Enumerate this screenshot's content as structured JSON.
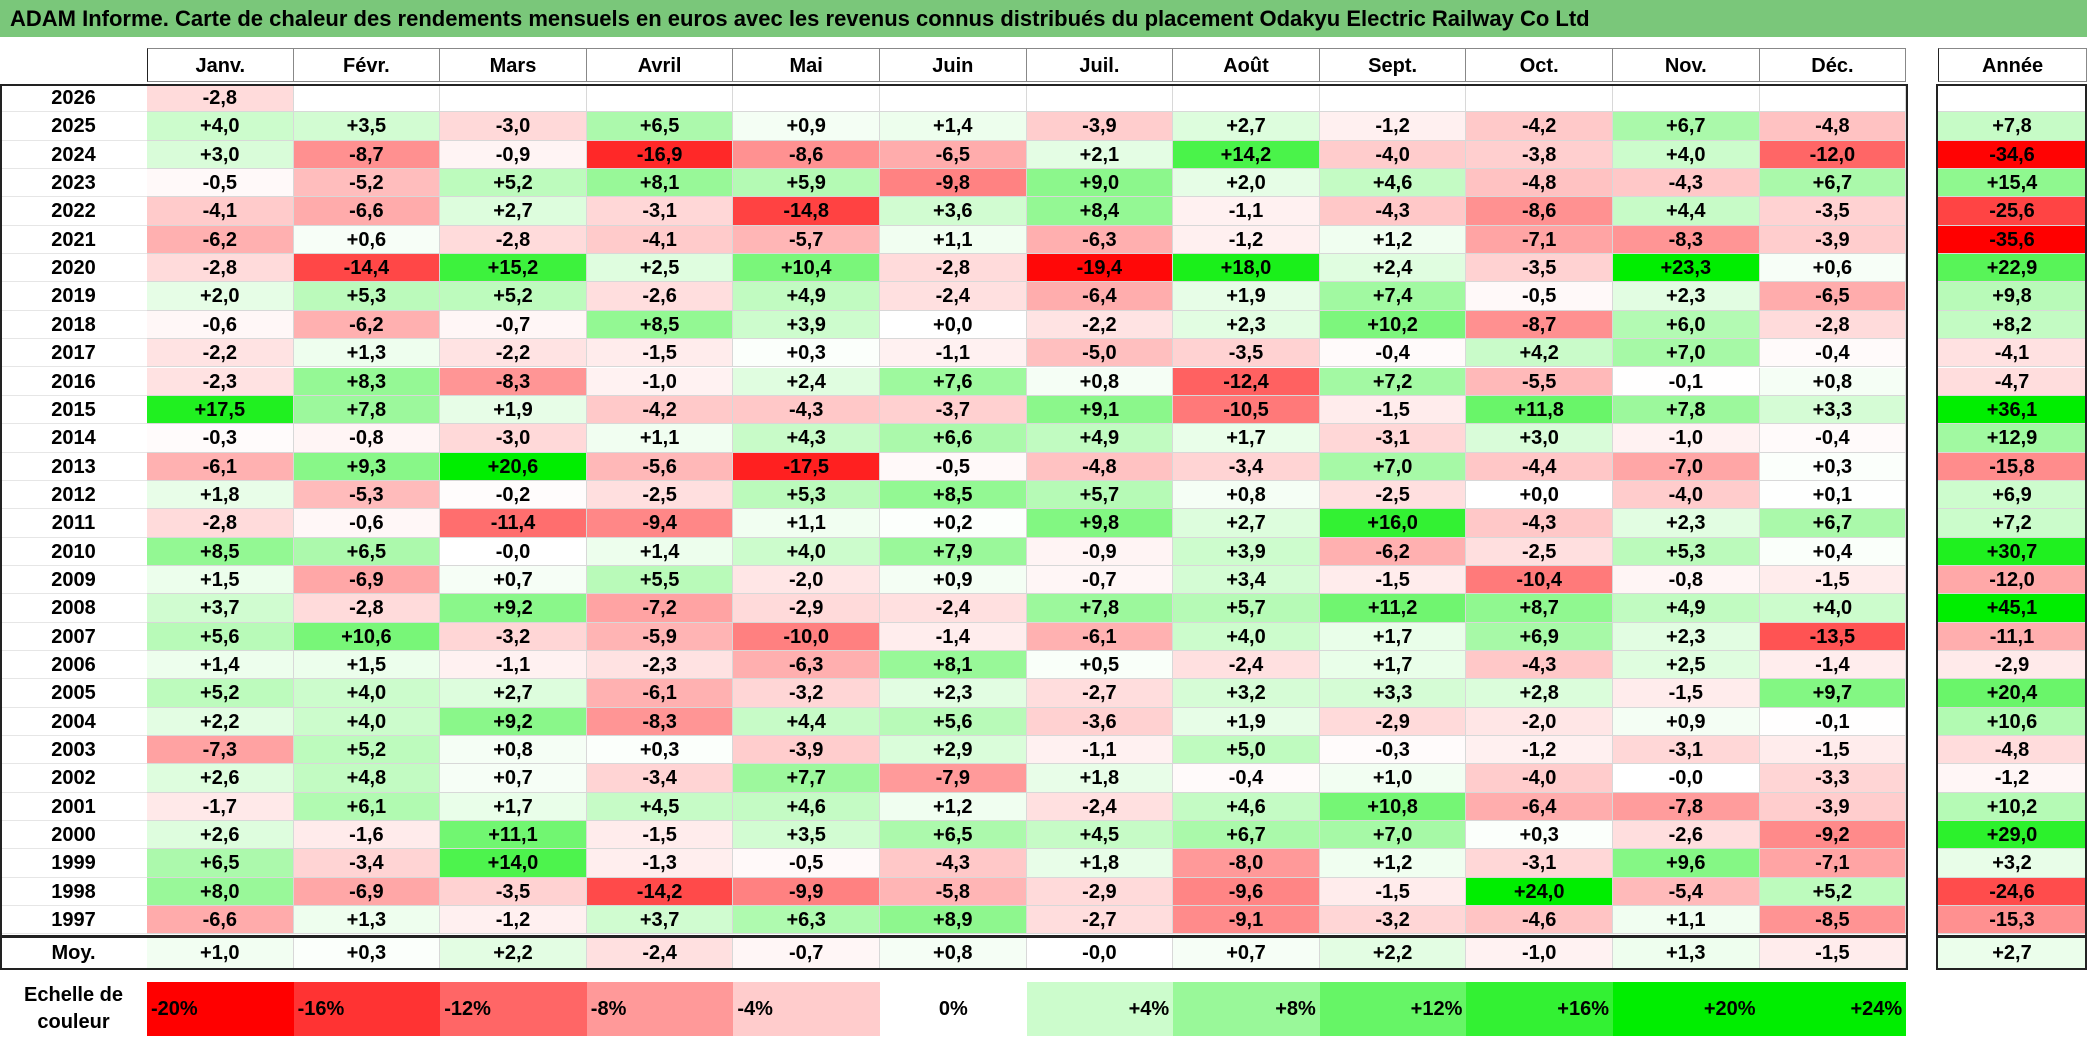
{
  "title": "ADAM Informe. Carte de chaleur des rendements mensuels en euros avec les revenus connus distribués du placement Odakyu Electric Railway Co Ltd",
  "chart_data": {
    "type": "heatmap",
    "months": [
      "Janv.",
      "Févr.",
      "Mars",
      "Avril",
      "Mai",
      "Juin",
      "Juil.",
      "Août",
      "Sept.",
      "Oct.",
      "Nov.",
      "Déc."
    ],
    "year_header": "Année",
    "rows": [
      {
        "year": "2026",
        "values": [
          "-2,8",
          "",
          "",
          "",
          "",
          "",
          "",
          "",
          "",
          "",
          "",
          ""
        ],
        "annual": ""
      },
      {
        "year": "2025",
        "values": [
          "+4,0",
          "+3,5",
          "-3,0",
          "+6,5",
          "+0,9",
          "+1,4",
          "-3,9",
          "+2,7",
          "-1,2",
          "-4,2",
          "+6,7",
          "-4,8"
        ],
        "annual": "+7,8"
      },
      {
        "year": "2024",
        "values": [
          "+3,0",
          "-8,7",
          "-0,9",
          "-16,9",
          "-8,6",
          "-6,5",
          "+2,1",
          "+14,2",
          "-4,0",
          "-3,8",
          "+4,0",
          "-12,0"
        ],
        "annual": "-34,6"
      },
      {
        "year": "2023",
        "values": [
          "-0,5",
          "-5,2",
          "+5,2",
          "+8,1",
          "+5,9",
          "-9,8",
          "+9,0",
          "+2,0",
          "+4,6",
          "-4,8",
          "-4,3",
          "+6,7"
        ],
        "annual": "+15,4"
      },
      {
        "year": "2022",
        "values": [
          "-4,1",
          "-6,6",
          "+2,7",
          "-3,1",
          "-14,8",
          "+3,6",
          "+8,4",
          "-1,1",
          "-4,3",
          "-8,6",
          "+4,4",
          "-3,5"
        ],
        "annual": "-25,6"
      },
      {
        "year": "2021",
        "values": [
          "-6,2",
          "+0,6",
          "-2,8",
          "-4,1",
          "-5,7",
          "+1,1",
          "-6,3",
          "-1,2",
          "+1,2",
          "-7,1",
          "-8,3",
          "-3,9"
        ],
        "annual": "-35,6"
      },
      {
        "year": "2020",
        "values": [
          "-2,8",
          "-14,4",
          "+15,2",
          "+2,5",
          "+10,4",
          "-2,8",
          "-19,4",
          "+18,0",
          "+2,4",
          "-3,5",
          "+23,3",
          "+0,6"
        ],
        "annual": "+22,9"
      },
      {
        "year": "2019",
        "values": [
          "+2,0",
          "+5,3",
          "+5,2",
          "-2,6",
          "+4,9",
          "-2,4",
          "-6,4",
          "+1,9",
          "+7,4",
          "-0,5",
          "+2,3",
          "-6,5"
        ],
        "annual": "+9,8"
      },
      {
        "year": "2018",
        "values": [
          "-0,6",
          "-6,2",
          "-0,7",
          "+8,5",
          "+3,9",
          "+0,0",
          "-2,2",
          "+2,3",
          "+10,2",
          "-8,7",
          "+6,0",
          "-2,8"
        ],
        "annual": "+8,2"
      },
      {
        "year": "2017",
        "values": [
          "-2,2",
          "+1,3",
          "-2,2",
          "-1,5",
          "+0,3",
          "-1,1",
          "-5,0",
          "-3,5",
          "-0,4",
          "+4,2",
          "+7,0",
          "-0,4"
        ],
        "annual": "-4,1"
      },
      {
        "year": "2016",
        "values": [
          "-2,3",
          "+8,3",
          "-8,3",
          "-1,0",
          "+2,4",
          "+7,6",
          "+0,8",
          "-12,4",
          "+7,2",
          "-5,5",
          "-0,1",
          "+0,8"
        ],
        "annual": "-4,7"
      },
      {
        "year": "2015",
        "values": [
          "+17,5",
          "+7,8",
          "+1,9",
          "-4,2",
          "-4,3",
          "-3,7",
          "+9,1",
          "-10,5",
          "-1,5",
          "+11,8",
          "+7,8",
          "+3,3"
        ],
        "annual": "+36,1"
      },
      {
        "year": "2014",
        "values": [
          "-0,3",
          "-0,8",
          "-3,0",
          "+1,1",
          "+4,3",
          "+6,6",
          "+4,9",
          "+1,7",
          "-3,1",
          "+3,0",
          "-1,0",
          "-0,4"
        ],
        "annual": "+12,9"
      },
      {
        "year": "2013",
        "values": [
          "-6,1",
          "+9,3",
          "+20,6",
          "-5,6",
          "-17,5",
          "-0,5",
          "-4,8",
          "-3,4",
          "+7,0",
          "-4,4",
          "-7,0",
          "+0,3"
        ],
        "annual": "-15,8"
      },
      {
        "year": "2012",
        "values": [
          "+1,8",
          "-5,3",
          "-0,2",
          "-2,5",
          "+5,3",
          "+8,5",
          "+5,7",
          "+0,8",
          "-2,5",
          "+0,0",
          "-4,0",
          "+0,1"
        ],
        "annual": "+6,9"
      },
      {
        "year": "2011",
        "values": [
          "-2,8",
          "-0,6",
          "-11,4",
          "-9,4",
          "+1,1",
          "+0,2",
          "+9,8",
          "+2,7",
          "+16,0",
          "-4,3",
          "+2,3",
          "+6,7"
        ],
        "annual": "+7,2"
      },
      {
        "year": "2010",
        "values": [
          "+8,5",
          "+6,5",
          "-0,0",
          "+1,4",
          "+4,0",
          "+7,9",
          "-0,9",
          "+3,9",
          "-6,2",
          "-2,5",
          "+5,3",
          "+0,4"
        ],
        "annual": "+30,7"
      },
      {
        "year": "2009",
        "values": [
          "+1,5",
          "-6,9",
          "+0,7",
          "+5,5",
          "-2,0",
          "+0,9",
          "-0,7",
          "+3,4",
          "-1,5",
          "-10,4",
          "-0,8",
          "-1,5"
        ],
        "annual": "-12,0"
      },
      {
        "year": "2008",
        "values": [
          "+3,7",
          "-2,8",
          "+9,2",
          "-7,2",
          "-2,9",
          "-2,4",
          "+7,8",
          "+5,7",
          "+11,2",
          "+8,7",
          "+4,9",
          "+4,0"
        ],
        "annual": "+45,1"
      },
      {
        "year": "2007",
        "values": [
          "+5,6",
          "+10,6",
          "-3,2",
          "-5,9",
          "-10,0",
          "-1,4",
          "-6,1",
          "+4,0",
          "+1,7",
          "+6,9",
          "+2,3",
          "-13,5"
        ],
        "annual": "-11,1"
      },
      {
        "year": "2006",
        "values": [
          "+1,4",
          "+1,5",
          "-1,1",
          "-2,3",
          "-6,3",
          "+8,1",
          "+0,5",
          "-2,4",
          "+1,7",
          "-4,3",
          "+2,5",
          "-1,4"
        ],
        "annual": "-2,9"
      },
      {
        "year": "2005",
        "values": [
          "+5,2",
          "+4,0",
          "+2,7",
          "-6,1",
          "-3,2",
          "+2,3",
          "-2,7",
          "+3,2",
          "+3,3",
          "+2,8",
          "-1,5",
          "+9,7"
        ],
        "annual": "+20,4"
      },
      {
        "year": "2004",
        "values": [
          "+2,2",
          "+4,0",
          "+9,2",
          "-8,3",
          "+4,4",
          "+5,6",
          "-3,6",
          "+1,9",
          "-2,9",
          "-2,0",
          "+0,9",
          "-0,1"
        ],
        "annual": "+10,6"
      },
      {
        "year": "2003",
        "values": [
          "-7,3",
          "+5,2",
          "+0,8",
          "+0,3",
          "-3,9",
          "+2,9",
          "-1,1",
          "+5,0",
          "-0,3",
          "-1,2",
          "-3,1",
          "-1,5"
        ],
        "annual": "-4,8"
      },
      {
        "year": "2002",
        "values": [
          "+2,6",
          "+4,8",
          "+0,7",
          "-3,4",
          "+7,7",
          "-7,9",
          "+1,8",
          "-0,4",
          "+1,0",
          "-4,0",
          "-0,0",
          "-3,3"
        ],
        "annual": "-1,2"
      },
      {
        "year": "2001",
        "values": [
          "-1,7",
          "+6,1",
          "+1,7",
          "+4,5",
          "+4,6",
          "+1,2",
          "-2,4",
          "+4,6",
          "+10,8",
          "-6,4",
          "-7,8",
          "-3,9"
        ],
        "annual": "+10,2"
      },
      {
        "year": "2000",
        "values": [
          "+2,6",
          "-1,6",
          "+11,1",
          "-1,5",
          "+3,5",
          "+6,5",
          "+4,5",
          "+6,7",
          "+7,0",
          "+0,3",
          "-2,6",
          "-9,2"
        ],
        "annual": "+29,0"
      },
      {
        "year": "1999",
        "values": [
          "+6,5",
          "-3,4",
          "+14,0",
          "-1,3",
          "-0,5",
          "-4,3",
          "+1,8",
          "-8,0",
          "+1,2",
          "-3,1",
          "+9,6",
          "-7,1"
        ],
        "annual": "+3,2"
      },
      {
        "year": "1998",
        "values": [
          "+8,0",
          "-6,9",
          "-3,5",
          "-14,2",
          "-9,9",
          "-5,8",
          "-2,9",
          "-9,6",
          "-1,5",
          "+24,0",
          "-5,4",
          "+5,2"
        ],
        "annual": "-24,6"
      },
      {
        "year": "1997",
        "values": [
          "-6,6",
          "+1,3",
          "-1,2",
          "+3,7",
          "+6,3",
          "+8,9",
          "-2,7",
          "-9,1",
          "-3,2",
          "-4,6",
          "+1,1",
          "-8,5"
        ],
        "annual": "-15,3"
      }
    ],
    "average_label": "Moy.",
    "average": [
      "+1,0",
      "+0,3",
      "+2,2",
      "-2,4",
      "-0,7",
      "+0,8",
      "-0,0",
      "+0,7",
      "+2,2",
      "-1,0",
      "+1,3",
      "-1,5"
    ],
    "average_annual": "+2,7",
    "scale_label_line1": "Echelle de",
    "scale_label_line2": "couleur",
    "scale": [
      "-20%",
      "-16%",
      "-12%",
      "-8%",
      "-4%",
      "0%",
      "+4%",
      "+8%",
      "+12%",
      "+16%",
      "+20%",
      "+24%"
    ],
    "colors": {
      "title_bar": "#7ac77a",
      "negative_max": "#ff0000",
      "positive_max": "#00ee00",
      "neutral": "#ffffff"
    }
  }
}
